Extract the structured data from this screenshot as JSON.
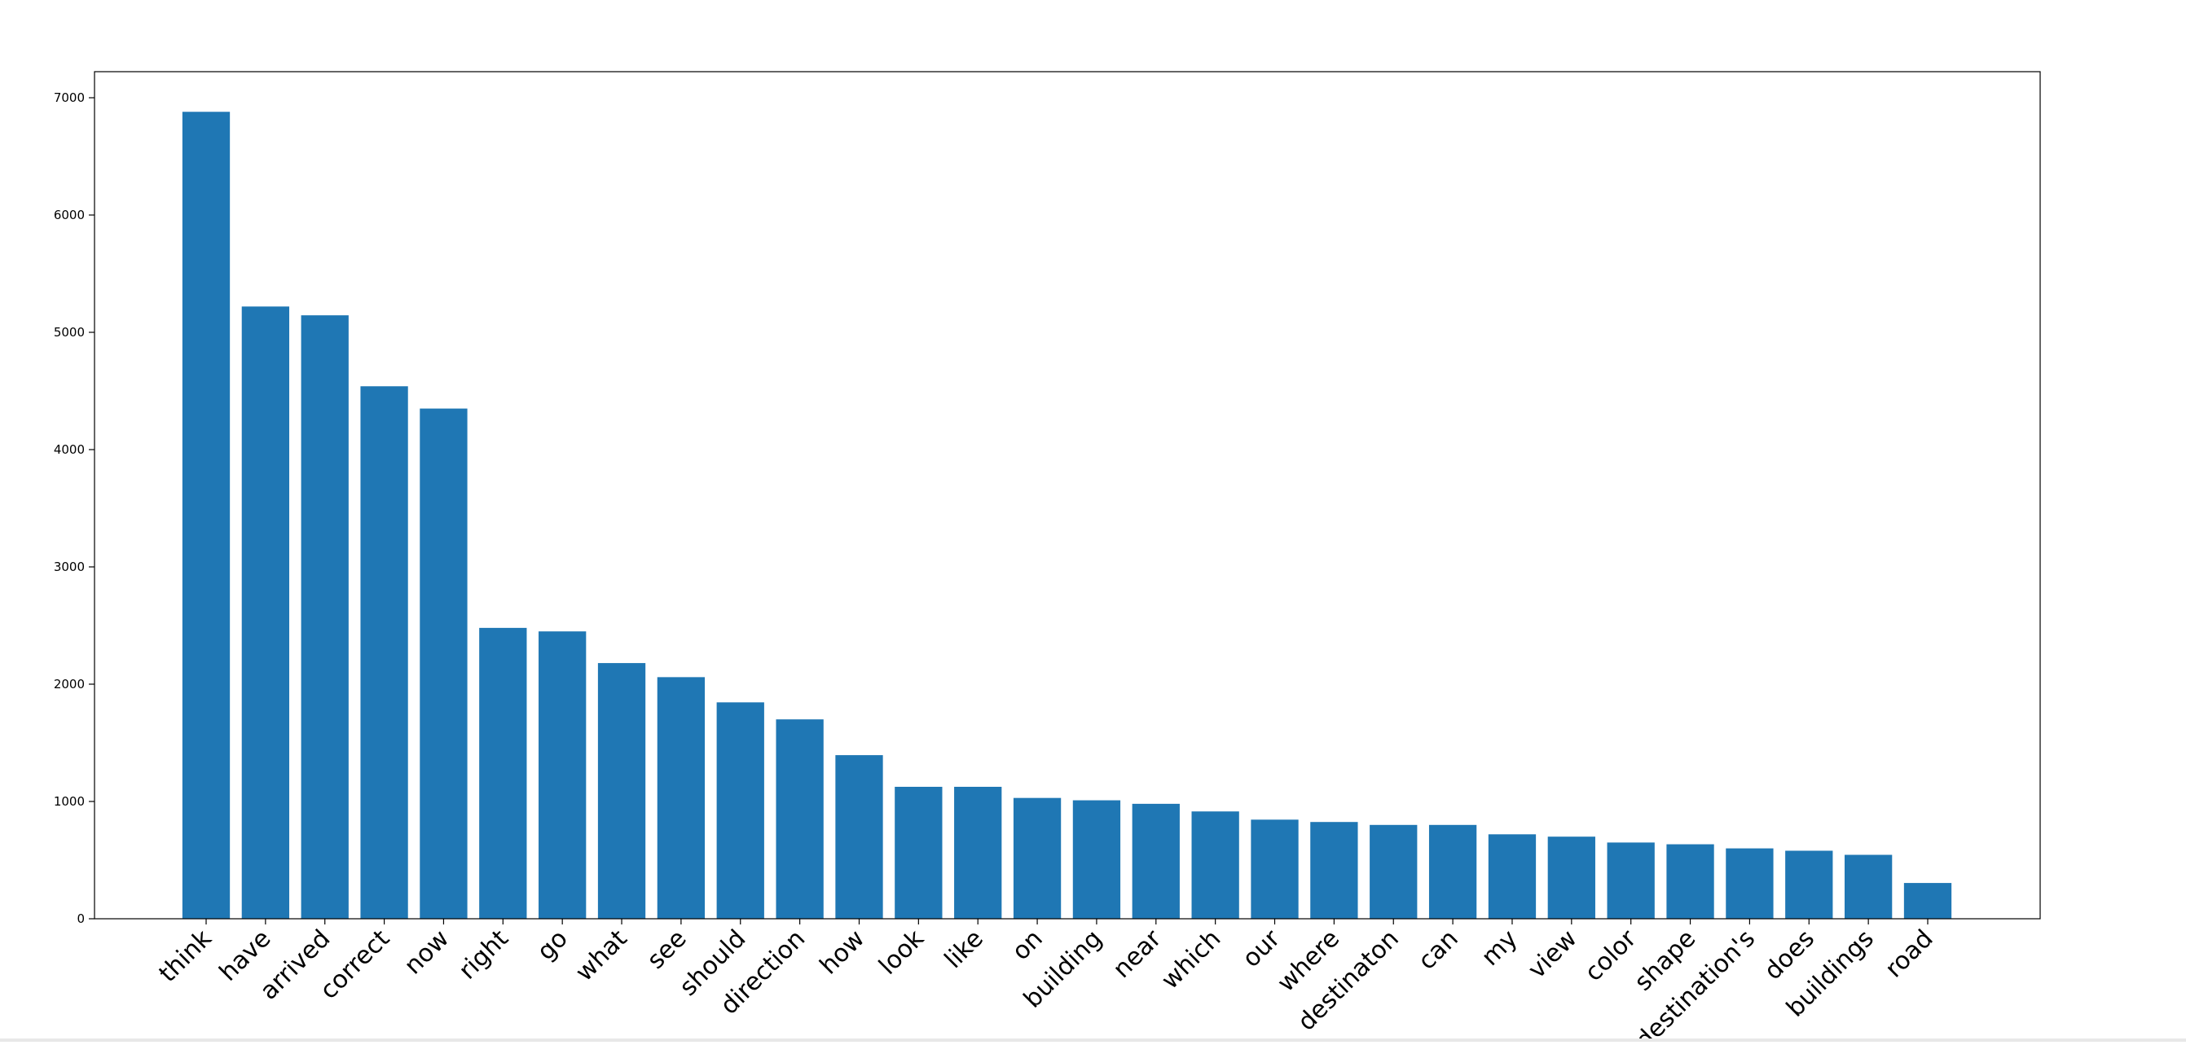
{
  "chart_data": {
    "type": "bar",
    "title": "",
    "xlabel": "",
    "ylabel": "",
    "categories": [
      "think",
      "have",
      "arrived",
      "correct",
      "now",
      "right",
      "go",
      "what",
      "see",
      "should",
      "direction",
      "how",
      "look",
      "like",
      "on",
      "building",
      "near",
      "which",
      "our",
      "where",
      "destinaton",
      "can",
      "my",
      "view",
      "color",
      "shape",
      "destination's",
      "does",
      "buildings",
      "road"
    ],
    "values": [
      6880,
      5220,
      5145,
      4540,
      4350,
      2480,
      2450,
      2180,
      2060,
      1845,
      1700,
      1395,
      1125,
      1125,
      1030,
      1010,
      980,
      915,
      845,
      825,
      800,
      800,
      720,
      700,
      650,
      635,
      600,
      580,
      545,
      305
    ],
    "ylim": [
      0,
      7000
    ],
    "yticks": [
      0,
      1000,
      2000,
      3000,
      4000,
      5000,
      6000,
      7000
    ],
    "bar_color": "#1f77b4",
    "grid": false,
    "legend": "none",
    "xtick_rotation": 45
  }
}
